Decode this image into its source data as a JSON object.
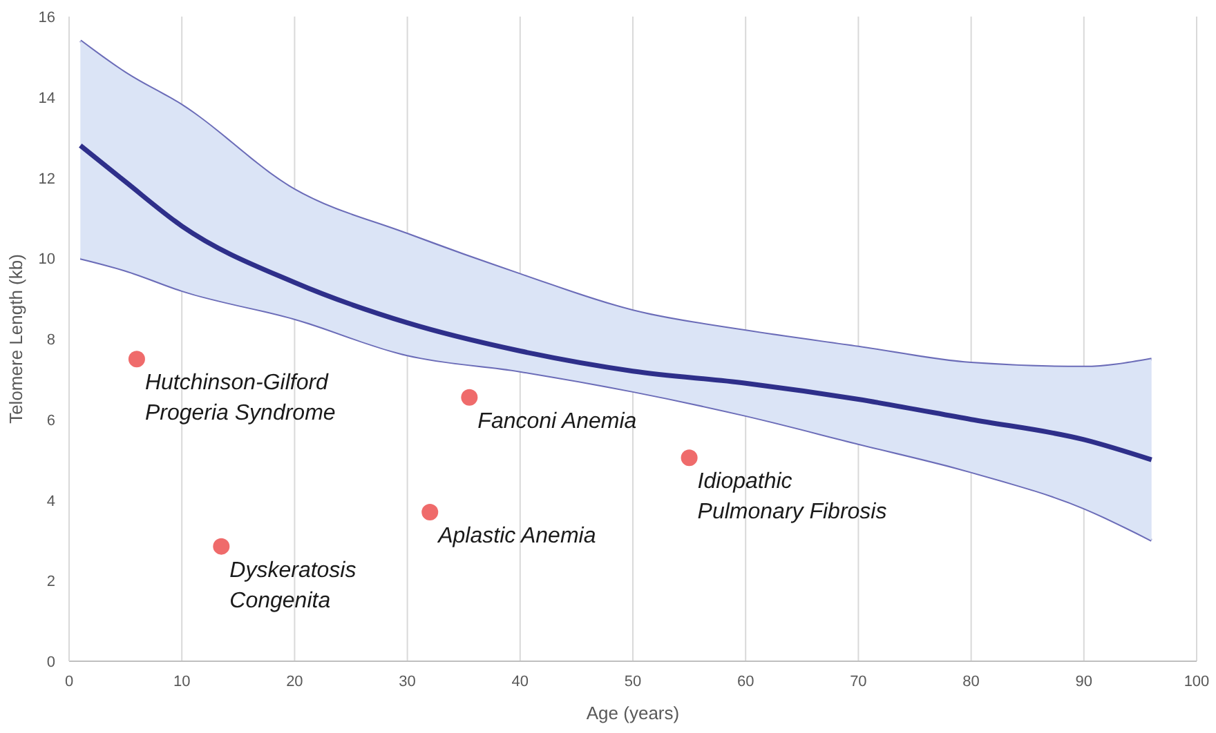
{
  "chart_data": {
    "type": "line",
    "xlabel": "Age (years)",
    "ylabel": "Telomere Length (kb)",
    "xlim": [
      0,
      100
    ],
    "ylim": [
      0,
      16
    ],
    "xticks": [
      0,
      10,
      20,
      30,
      40,
      50,
      60,
      70,
      80,
      90,
      100
    ],
    "yticks": [
      0,
      2,
      4,
      6,
      8,
      10,
      12,
      14,
      16
    ],
    "grid": "x",
    "series": [
      {
        "color": "#6b6cb8",
        "x": [
          1,
          5,
          10,
          20,
          30,
          40,
          50,
          60,
          70,
          80,
          90,
          96
        ],
        "values": [
          15.4,
          14.6,
          13.8,
          11.7,
          10.6,
          9.6,
          8.7,
          8.2,
          7.8,
          7.4,
          7.3,
          7.5
        ]
      },
      {
        "color": "#6b6cb8",
        "x": [
          1,
          5,
          10,
          20,
          30,
          40,
          50,
          60,
          70,
          80,
          90,
          96
        ],
        "values": [
          10.0,
          9.7,
          9.2,
          8.5,
          7.6,
          7.2,
          6.7,
          6.1,
          5.4,
          4.7,
          3.8,
          3.0
        ]
      },
      {
        "color": "#2e2f8a",
        "x": [
          1,
          5,
          10,
          20,
          30,
          40,
          50,
          60,
          70,
          80,
          90,
          96
        ],
        "values": [
          12.8,
          11.9,
          10.8,
          9.4,
          8.4,
          7.7,
          7.2,
          6.9,
          6.5,
          6.0,
          5.5,
          5.0
        ],
        "lower": [
          10.0,
          9.7,
          9.2,
          8.5,
          7.6,
          7.2,
          6.7,
          6.1,
          5.4,
          4.7,
          3.8,
          3.0
        ],
        "upper": [
          15.4,
          14.6,
          13.8,
          11.7,
          10.6,
          9.6,
          8.7,
          8.2,
          7.8,
          7.4,
          7.3,
          7.5
        ]
      },
      {
        "type": "scatter",
        "color": "#ef6b6b",
        "x": [
          6,
          13.5,
          32,
          35.5,
          55
        ],
        "values": [
          7.5,
          2.85,
          3.7,
          6.55,
          5.05
        ]
      }
    ],
    "annotations": [
      {
        "text": "Hutchinson-Gilford\nProgeria Syndrome",
        "x": 6,
        "y": 7.5
      },
      {
        "text": "Dyskeratosis\nCongenita",
        "x": 13.5,
        "y": 2.85
      },
      {
        "text": "Aplastic Anemia",
        "x": 32,
        "y": 3.7
      },
      {
        "text": "Fanconi Anemia",
        "x": 35.5,
        "y": 6.55
      },
      {
        "text": "Idiopathic\nPulmonary Fibrosis",
        "x": 55,
        "y": 5.05
      }
    ]
  }
}
